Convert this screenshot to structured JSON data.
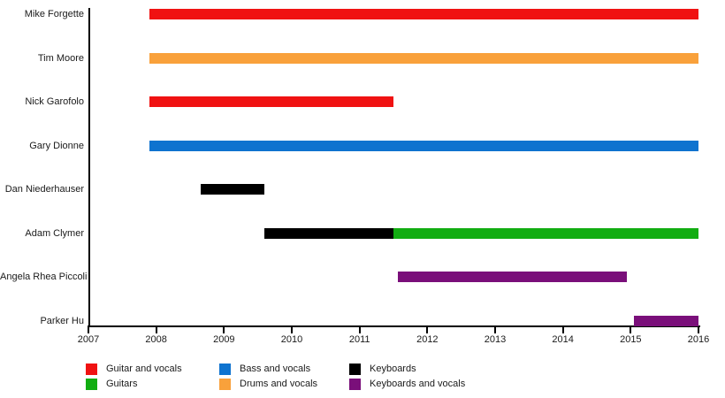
{
  "chart_data": {
    "type": "bar",
    "subtype": "horizontal-gantt-band-member-timeline",
    "grid": false,
    "legend_position": "bottom",
    "x_axis": {
      "label": "",
      "min": 2007,
      "max": 2016,
      "ticks": [
        2007,
        2008,
        2009,
        2010,
        2011,
        2012,
        2013,
        2014,
        2015,
        2016
      ]
    },
    "rows": [
      {
        "label": "Mike Forgette",
        "segments": [
          {
            "role": "Guitar and vocals",
            "start": 2007.9,
            "end": 2016
          }
        ]
      },
      {
        "label": "Tim Moore",
        "segments": [
          {
            "role": "Drums and vocals",
            "start": 2007.9,
            "end": 2016
          }
        ]
      },
      {
        "label": "Nick Garofolo",
        "segments": [
          {
            "role": "Guitar and vocals",
            "start": 2007.9,
            "end": 2011.5
          }
        ]
      },
      {
        "label": "Gary Dionne",
        "segments": [
          {
            "role": "Bass and vocals",
            "start": 2007.9,
            "end": 2016
          }
        ]
      },
      {
        "label": "Dan Niederhauser",
        "segments": [
          {
            "role": "Keyboards",
            "start": 2008.65,
            "end": 2009.6
          }
        ]
      },
      {
        "label": "Adam Clymer",
        "segments": [
          {
            "role": "Keyboards",
            "start": 2009.6,
            "end": 2011.5
          },
          {
            "role": "Guitars",
            "start": 2011.5,
            "end": 2016
          }
        ]
      },
      {
        "label": "Angela Rhea Piccoli",
        "segments": [
          {
            "role": "Keyboards and vocals",
            "start": 2011.57,
            "end": 2014.95
          }
        ]
      },
      {
        "label": "Parker Hu",
        "segments": [
          {
            "role": "Keyboards and vocals",
            "start": 2015.05,
            "end": 2016
          }
        ]
      }
    ],
    "legend": [
      {
        "label": "Guitar and vocals",
        "color": "#f01212"
      },
      {
        "label": "Guitars",
        "color": "#12ad12"
      },
      {
        "label": "Bass and vocals",
        "color": "#0f73cf"
      },
      {
        "label": "Drums and vocals",
        "color": "#f9a13b"
      },
      {
        "label": "Keyboards",
        "color": "#000000"
      },
      {
        "label": "Keyboards and vocals",
        "color": "#7a0f7a"
      }
    ],
    "colors": {
      "axis": "#000000",
      "text": "#1a1a1a",
      "background": "#ffffff"
    }
  }
}
